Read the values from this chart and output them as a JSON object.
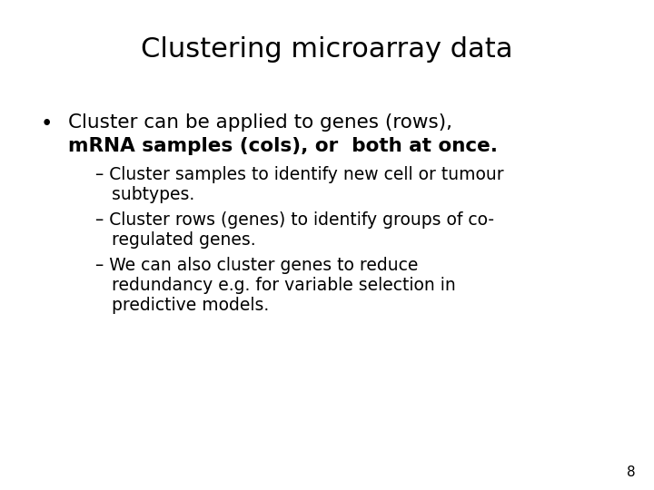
{
  "title": "Clustering microarray data",
  "background_color": "#ffffff",
  "text_color": "#000000",
  "title_fontsize": 22,
  "body_fontsize": 15.5,
  "sub_fontsize": 13.5,
  "page_number": "8",
  "bullet_line1": "Cluster can be applied to genes (rows),",
  "bullet_line2": "mRNA samples (cols), or  both at once.",
  "sub_bullets": [
    [
      "– Cluster samples to identify new cell or tumour",
      "   subtypes."
    ],
    [
      "– Cluster rows (genes) to identify groups of co-",
      "   regulated genes."
    ],
    [
      "– We can also cluster genes to reduce",
      "   redundancy e.g. for variable selection in",
      "   predictive models."
    ]
  ]
}
